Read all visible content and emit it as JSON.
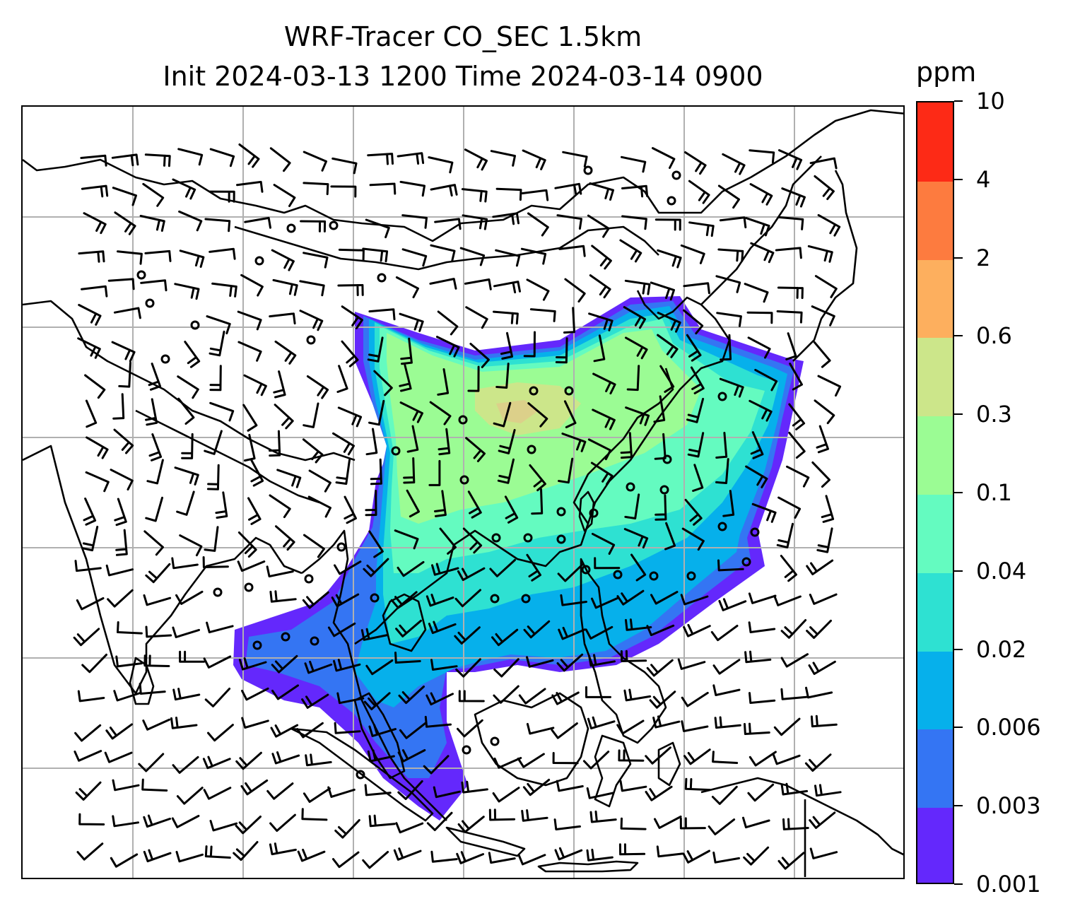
{
  "title": {
    "line1": "WRF-Tracer CO_SEC 1.5km",
    "line2": "Init 2024-03-13 1200 Time 2024-03-14 0900"
  },
  "colorbar": {
    "unit": "ppm",
    "levels": [
      "0.001",
      "0.003",
      "0.006",
      "0.02",
      "0.04",
      "0.1",
      "0.3",
      "0.6",
      "2",
      "4",
      "10"
    ],
    "colors": [
      "#6428fc",
      "#3475f3",
      "#06b0eb",
      "#2ee1d2",
      "#64fbc0",
      "#9bfc94",
      "#cce68a",
      "#fdaf5e",
      "#fd7b3f",
      "#fd2a16"
    ]
  },
  "map": {
    "grid_color": "#b0b0b0",
    "coast_color": "#000000",
    "barb_color": "#000000"
  }
}
